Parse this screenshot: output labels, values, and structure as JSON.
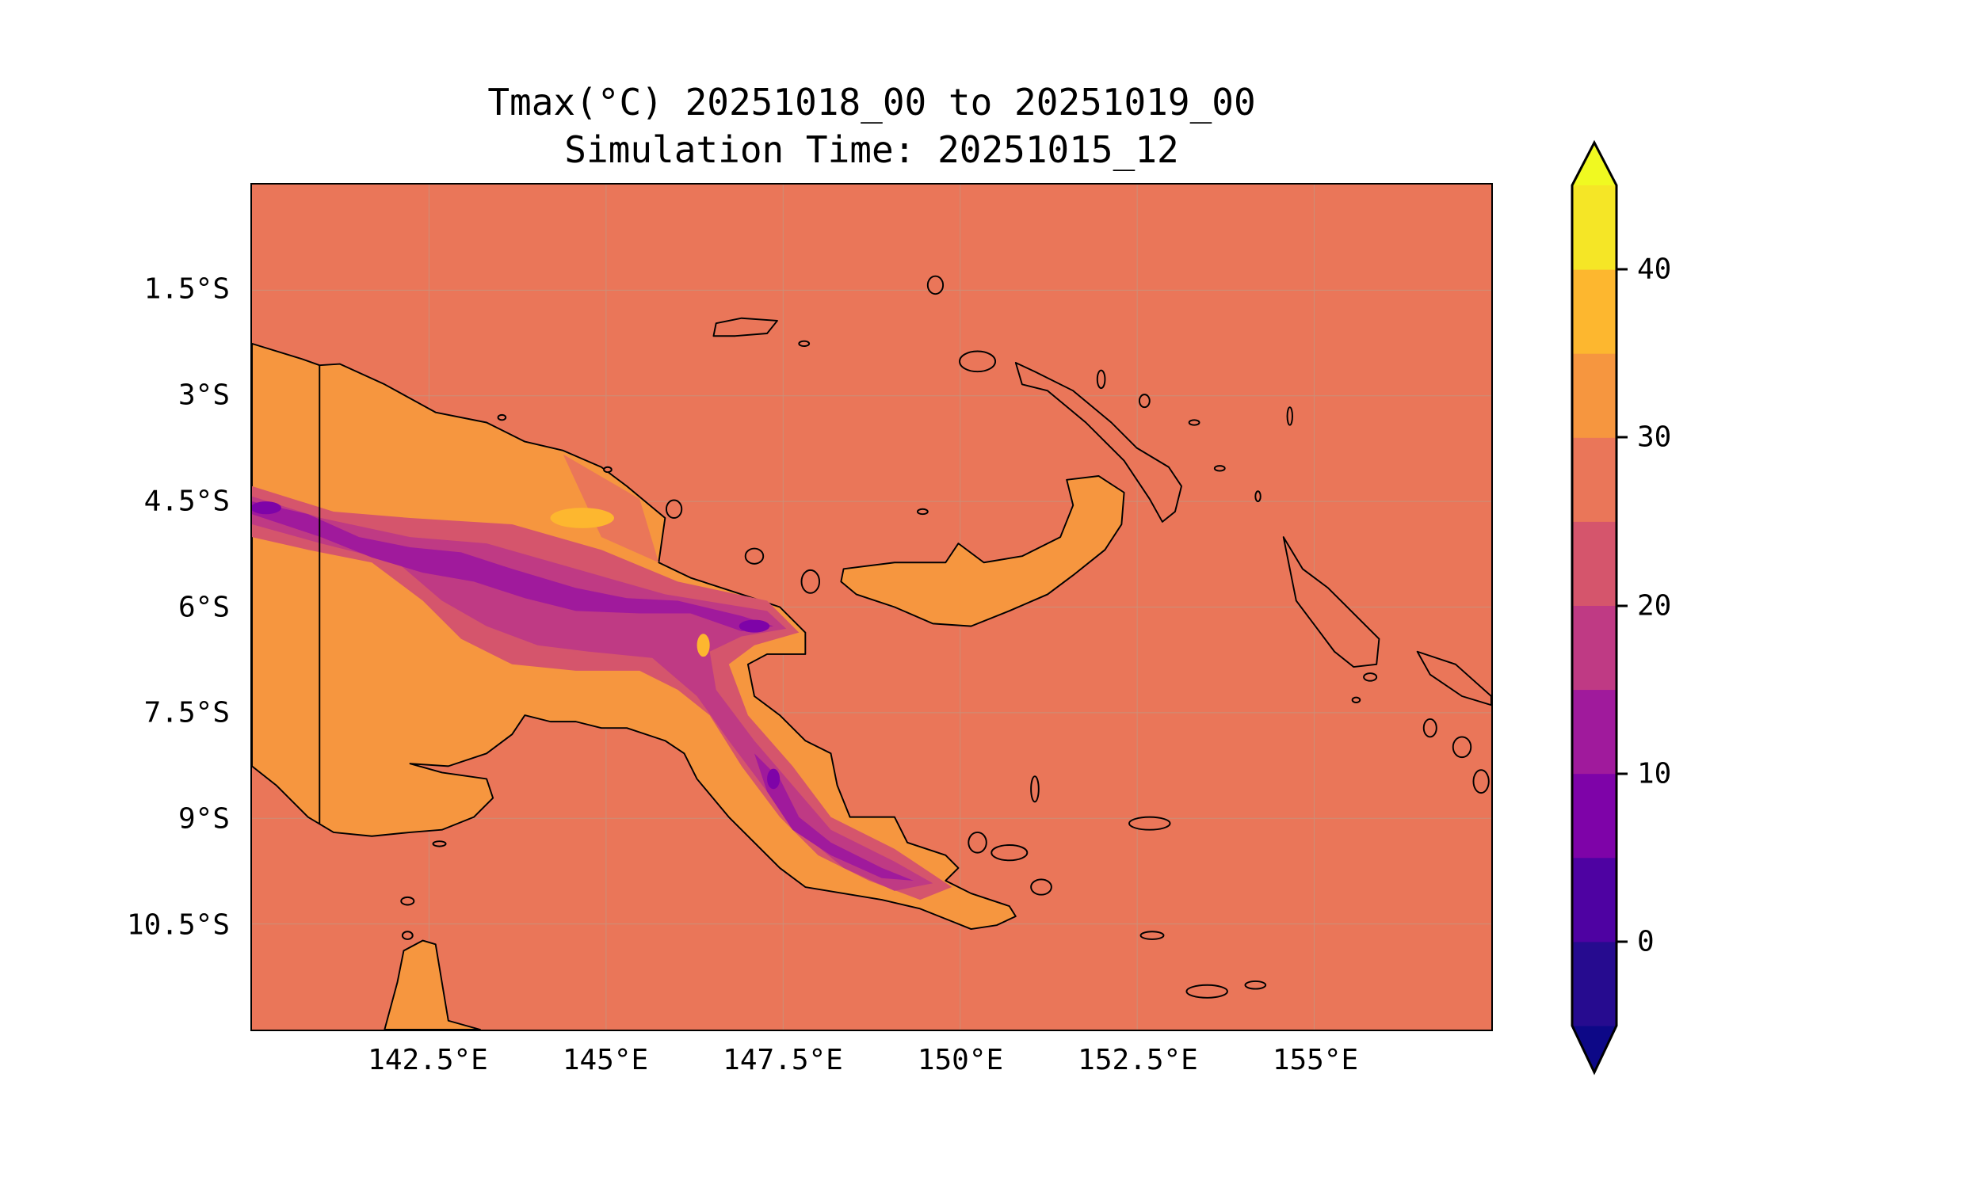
{
  "title": {
    "line1": "Tmax(°C) 20251018_00 to 20251019_00",
    "line2": "Simulation Time: 20251015_12"
  },
  "map": {
    "region": "Papua New Guinea",
    "lon_range": [
      140,
      157.5
    ],
    "lat_range": [
      -12,
      0
    ],
    "x_ticks": [
      {
        "lon": 142.5,
        "label": "142.5°E"
      },
      {
        "lon": 145,
        "label": "145°E"
      },
      {
        "lon": 147.5,
        "label": "147.5°E"
      },
      {
        "lon": 150,
        "label": "150°E"
      },
      {
        "lon": 152.5,
        "label": "152.5°E"
      },
      {
        "lon": 155,
        "label": "155°E"
      }
    ],
    "y_ticks": [
      {
        "lat": -1.5,
        "label": "1.5°S"
      },
      {
        "lat": -3,
        "label": "3°S"
      },
      {
        "lat": -4.5,
        "label": "4.5°S"
      },
      {
        "lat": -6,
        "label": "6°S"
      },
      {
        "lat": -7.5,
        "label": "7.5°S"
      },
      {
        "lat": -9,
        "label": "9°S"
      },
      {
        "lat": -10.5,
        "label": "10.5°S"
      }
    ]
  },
  "colorbar": {
    "levels": [
      -5,
      0,
      5,
      10,
      15,
      20,
      25,
      30,
      35,
      40,
      45
    ],
    "colors": [
      "#260b8f",
      "#4e02a2",
      "#7e03a8",
      "#a01a9c",
      "#bf3a84",
      "#d5556c",
      "#ea7659",
      "#f6963f",
      "#fdb72f",
      "#f5e626"
    ],
    "under_color": "#0d0887",
    "over_color": "#f0f921",
    "ticks": [
      {
        "value": 0,
        "label": "0"
      },
      {
        "value": 10,
        "label": "10"
      },
      {
        "value": 20,
        "label": "20"
      },
      {
        "value": 30,
        "label": "30"
      },
      {
        "value": 40,
        "label": "40"
      }
    ]
  }
}
